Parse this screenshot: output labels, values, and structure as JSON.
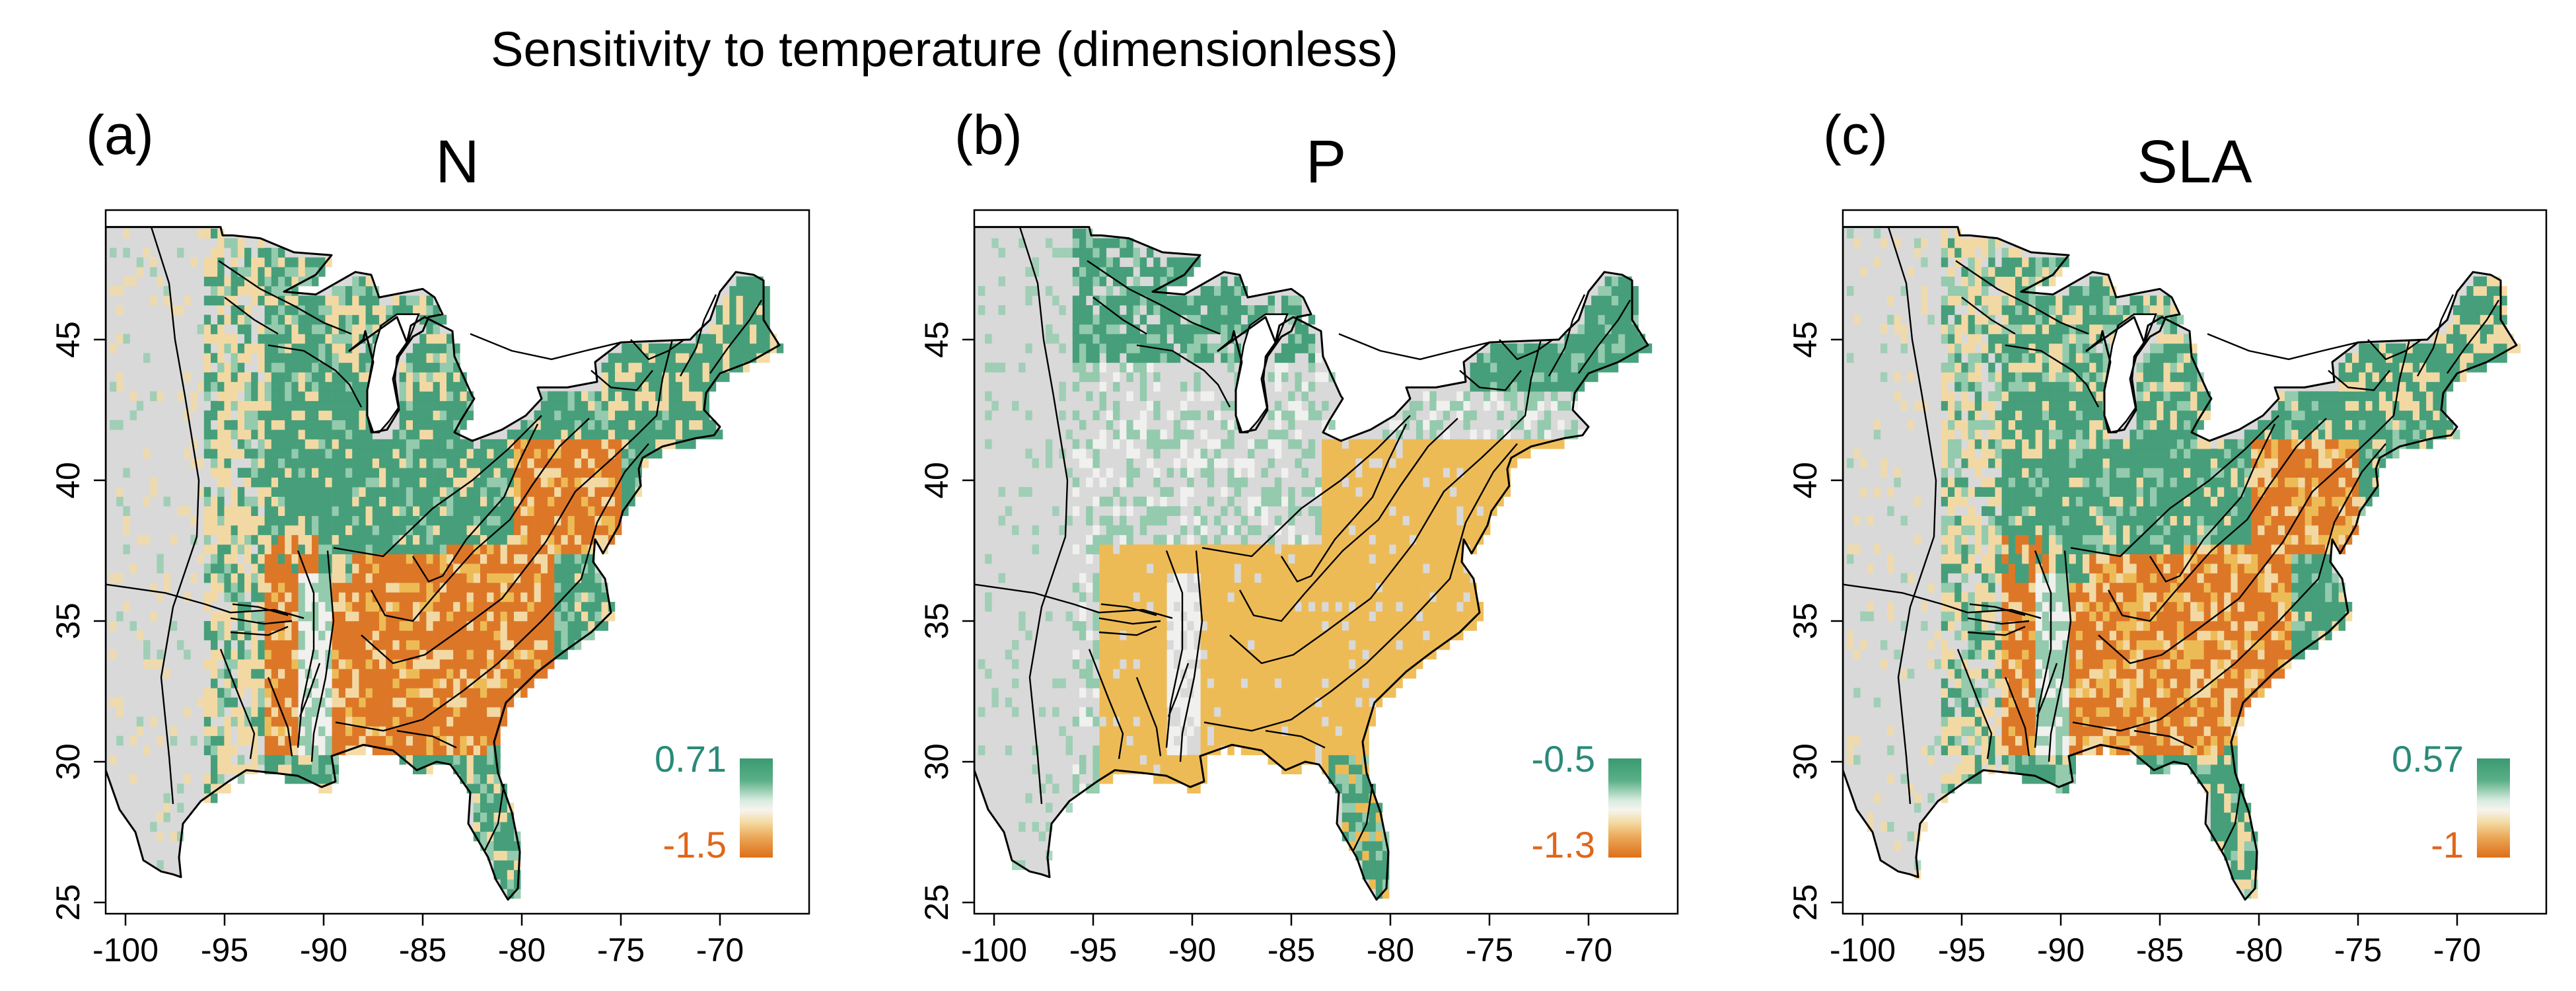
{
  "figure": {
    "title": "Sensitivity to temperature (dimensionless)"
  },
  "colors": {
    "high": "#3a9a72",
    "mid_high": "#8ec9a9",
    "neutral": "#f2f2f0",
    "mid_low": "#f4d9a0",
    "low": "#dd6f19",
    "amber": "#efb84b",
    "land_grey": "#d9d9d9",
    "high_text": "#2a8a78",
    "low_text": "#e0661a"
  },
  "panels": [
    {
      "id": "a",
      "letter": "(a)",
      "title": "N",
      "legend": {
        "max_label": "0.71",
        "min_label": "-1.5"
      },
      "x_ticks": [
        "-100",
        "-95",
        "-90",
        "-85",
        "-80",
        "-75",
        "-70"
      ],
      "y_ticks": [
        "25",
        "30",
        "35",
        "40",
        "45"
      ]
    },
    {
      "id": "b",
      "letter": "(b)",
      "title": "P",
      "legend": {
        "max_label": "-0.5",
        "min_label": "-1.3"
      },
      "x_ticks": [
        "-100",
        "-95",
        "-90",
        "-85",
        "-80",
        "-75",
        "-70"
      ],
      "y_ticks": [
        "25",
        "30",
        "35",
        "40",
        "45"
      ]
    },
    {
      "id": "c",
      "letter": "(c)",
      "title": "SLA",
      "legend": {
        "max_label": "0.57",
        "min_label": "-1"
      },
      "x_ticks": [
        "-100",
        "-95",
        "-90",
        "-85",
        "-80",
        "-75",
        "-70"
      ],
      "y_ticks": [
        "25",
        "30",
        "35",
        "40",
        "45"
      ]
    }
  ]
}
